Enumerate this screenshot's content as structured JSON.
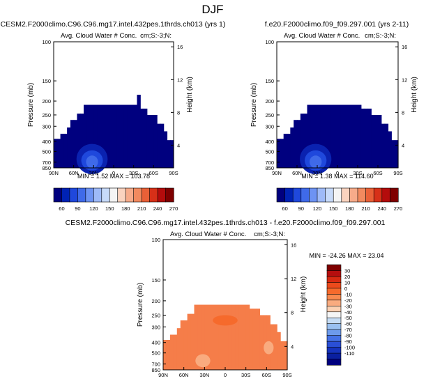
{
  "page_title": "DJF",
  "chart_data": [
    {
      "type": "heatmap",
      "title": "CESM2.F2000climo.C96.C96.mg17.intel.432pes.1thrds.ch013 (yrs 1)",
      "subtitle_left": "Avg. Cloud Water # Conc.",
      "subtitle_right": "cm;S:-3;N:",
      "ylabel": "Pressure (mb)",
      "ylabel_right": "Height (km)",
      "pressure_ticks": [
        "100",
        "150",
        "200",
        "250",
        "300",
        "400",
        "500",
        "700",
        "850"
      ],
      "height_ticks": [
        "16",
        "12",
        "8",
        "4"
      ],
      "lat_ticks": [
        "90N",
        "60N",
        "30N",
        "0",
        "30S",
        "60S",
        "90S"
      ],
      "stats": "MIN =  1.52  MAX = 103.78",
      "colorbar_labels": [
        "60",
        "90",
        "120",
        "150",
        "180",
        "210",
        "240",
        "270"
      ]
    },
    {
      "type": "heatmap",
      "title": "f.e20.F2000climo.f09_f09.297.001 (yrs 2-11)",
      "subtitle_left": "Avg. Cloud Water # Conc.",
      "subtitle_right": "cm;S:-3;N:",
      "ylabel": "Pressure (mb)",
      "ylabel_right": "Height (km)",
      "pressure_ticks": [
        "100",
        "150",
        "200",
        "250",
        "300",
        "400",
        "500",
        "700",
        "850"
      ],
      "height_ticks": [
        "16",
        "12",
        "8",
        "4"
      ],
      "lat_ticks": [
        "90N",
        "60N",
        "30N",
        "0",
        "30S",
        "60S",
        "90S"
      ],
      "stats": "MIN =  1.38  MAX = 114.60",
      "colorbar_labels": [
        "60",
        "90",
        "120",
        "150",
        "180",
        "210",
        "240",
        "270"
      ]
    },
    {
      "type": "heatmap",
      "title": "CESM2.F2000climo.C96.C96.mg17.intel.432pes.1thrds.ch013 - f.e20.F2000climo.f09_f09.297.001",
      "subtitle_left": "Avg. Cloud Water # Conc.",
      "subtitle_right": "cm;S:-3;N:",
      "ylabel": "Pressure (mb)",
      "ylabel_right": "Height (km)",
      "pressure_ticks": [
        "100",
        "150",
        "200",
        "250",
        "300",
        "400",
        "500",
        "700",
        "850"
      ],
      "height_ticks": [
        "16",
        "12",
        "8",
        "4"
      ],
      "lat_ticks": [
        "90N",
        "60N",
        "30N",
        "0",
        "30S",
        "60S",
        "90S"
      ],
      "stats": "MIN = -24.26  MAX =  23.04",
      "colorbar_labels": [
        "30",
        "20",
        "10",
        "0",
        "-10",
        "-20",
        "-30",
        "-40",
        "-50",
        "-60",
        "-70",
        "-80",
        "-90",
        "-100",
        "-110"
      ]
    }
  ],
  "colors": {
    "abs_colorbar": [
      "#00007f",
      "#0022b4",
      "#1f48dc",
      "#3f6ae9",
      "#6d93f3",
      "#9ebaf8",
      "#c7daf9",
      "#f4f4f4",
      "#fad3bf",
      "#f7ab8a",
      "#f28a5f",
      "#e96037",
      "#d73018",
      "#b40c0c",
      "#7f0000"
    ],
    "diff_colorbar": [
      "#7f0000",
      "#b60e0e",
      "#d72a12",
      "#ec4a1c",
      "#f66a2c",
      "#f98a4f",
      "#f9ab7f",
      "#fbd1b3",
      "#f5f5f5",
      "#c6dcf4",
      "#9ac0f0",
      "#6d9bec",
      "#4572e6",
      "#2a4fd6",
      "#1633be",
      "#0a1fa0",
      "#00007f"
    ]
  }
}
